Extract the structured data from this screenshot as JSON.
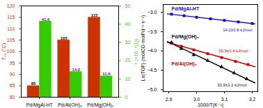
{
  "chart_data": [
    {
      "type": "bar",
      "categories": [
        "Pd/MgAl-HT",
        "Pd/Al(OH)₃",
        "Pd/Mg(OH)₂"
      ],
      "ylabel": "T₅₀ (°C)",
      "y2label": "r (×10⁻⁴(1))",
      "ylim": [
        80,
        120
      ],
      "yticks": [
        80,
        85,
        90,
        95,
        100,
        105,
        110,
        115,
        120
      ],
      "y2lim": [
        0,
        50
      ],
      "y2ticks": [
        0,
        10,
        20,
        30,
        40,
        50
      ],
      "data_labels": true,
      "grid": false,
      "series": [
        {
          "color": "#cc3300",
          "label_color": "#000000",
          "values": [
            85,
            105,
            115
          ]
        },
        {
          "color": "#33cc00",
          "label_color": "#7700bb",
          "axis": "y2",
          "values": [
            41.6,
            14.0,
            11.6
          ],
          "value_labels": [
            "41.6",
            "14.0",
            "11.6"
          ]
        }
      ]
    },
    {
      "type": "scatter",
      "xlabel": "1000/T(K⁻¹)",
      "ylabel": "Ln(TOF) (molCO·molPd⁻¹·s⁻¹)",
      "xlim": [
        2.88,
        3.22
      ],
      "ylim": [
        -5.05,
        -2.8
      ],
      "xticks": [
        2.9,
        {
          "value": 3.0,
          "label": "3.0"
        },
        3.1,
        3.2
      ],
      "yticks": [
        {
          "value": -5.0,
          "label": "−5.0"
        },
        {
          "value": -4.5,
          "label": "−4.5"
        },
        {
          "value": -4.0,
          "label": "−4.0"
        },
        {
          "value": -3.5,
          "label": "−3.5"
        },
        {
          "value": -3.0,
          "label": "−3.0"
        }
      ],
      "grid": false,
      "series": [
        {
          "type": "line",
          "color": "#1111cc",
          "line_style": "solid",
          "x": [
            2.895,
            3.21
          ],
          "values": [
            -3.0407,
            -3.2999
          ]
        },
        {
          "type": "line",
          "color": "#cc0000",
          "line_style": "solid",
          "x": [
            2.895,
            3.21
          ],
          "values": [
            -3.7774,
            -4.4069
          ]
        },
        {
          "type": "line",
          "color": "#111111",
          "line_style": "solid",
          "x": [
            2.895,
            3.21
          ],
          "values": [
            -3.7555,
            -4.8254
          ]
        },
        {
          "type": "scatter",
          "color": "#1111cc",
          "marker": "square",
          "label": "Pd/MgAl-HT",
          "annotation": "14.2±0.8 kJ/mol",
          "x": [
            2.91,
            2.955,
            3.0,
            3.05,
            3.1,
            3.15,
            3.2
          ],
          "values": [
            -3.05,
            -3.09,
            -3.13,
            -3.17,
            -3.21,
            -3.25,
            -3.29
          ]
        },
        {
          "type": "scatter",
          "color": "#cc0000",
          "marker": "square",
          "label": "Pd/Al(OH)₃",
          "annotation": "16.9±0.4 kJ/mol",
          "x": [
            2.91,
            2.945,
            2.99,
            3.04,
            3.09,
            3.14,
            3.185
          ],
          "values": [
            -3.8,
            -3.88,
            -3.97,
            -4.07,
            -4.17,
            -4.27,
            -4.35
          ]
        },
        {
          "type": "scatter",
          "color": "#111111",
          "marker": "triangle",
          "label": "Pd/Mg(OH)₂",
          "annotation": "33.9±1.2 kJ/mol",
          "x": [
            2.91,
            2.945,
            2.99,
            3.04,
            3.09,
            3.135,
            3.18
          ],
          "values": [
            -3.78,
            -3.94,
            -4.1,
            -4.25,
            -4.41,
            -4.57,
            -4.72
          ]
        }
      ]
    }
  ]
}
